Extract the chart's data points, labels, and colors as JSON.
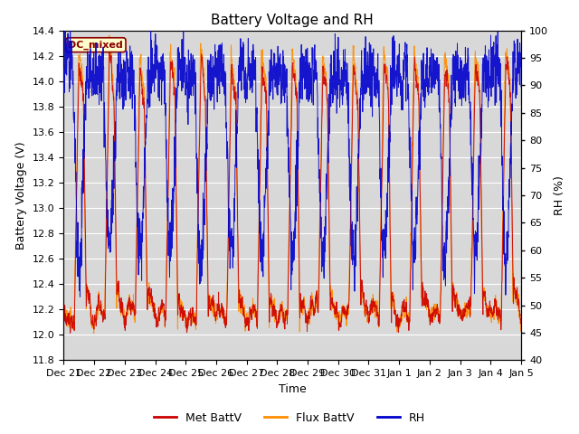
{
  "title": "Battery Voltage and RH",
  "xlabel": "Time",
  "ylabel_left": "Battery Voltage (V)",
  "ylabel_right": "RH (%)",
  "annotation": "DC_mixed",
  "annotation_color": "#8B0000",
  "annotation_bg": "#FFFFCC",
  "annotation_border": "#8B0000",
  "ylim_left": [
    11.8,
    14.4
  ],
  "ylim_right": [
    40,
    100
  ],
  "yticks_left": [
    11.8,
    12.0,
    12.2,
    12.4,
    12.6,
    12.8,
    13.0,
    13.2,
    13.4,
    13.6,
    13.8,
    14.0,
    14.2,
    14.4
  ],
  "yticks_right": [
    40,
    45,
    50,
    55,
    60,
    65,
    70,
    75,
    80,
    85,
    90,
    95,
    100
  ],
  "xtick_labels": [
    "Dec 21",
    "Dec 22",
    "Dec 23",
    "Dec 24",
    "Dec 25",
    "Dec 26",
    "Dec 27",
    "Dec 28",
    "Dec 29",
    "Dec 30",
    "Dec 31",
    "Jan 1",
    "Jan 2",
    "Jan 3",
    "Jan 4",
    "Jan 5"
  ],
  "colors": {
    "met_battv": "#CC0000",
    "flux_battv": "#FF8C00",
    "rh": "#0000CC",
    "background": "#D8D8D8",
    "grid": "#FFFFFF",
    "fig_bg": "#FFFFFF"
  },
  "legend": {
    "labels": [
      "Met BattV",
      "Flux BattV",
      "RH"
    ],
    "colors": [
      "#CC0000",
      "#FF8C00",
      "#0000CC"
    ]
  },
  "title_fontsize": 11,
  "axis_label_fontsize": 9,
  "tick_fontsize": 8,
  "n_days": 15,
  "samples_per_day": 144
}
